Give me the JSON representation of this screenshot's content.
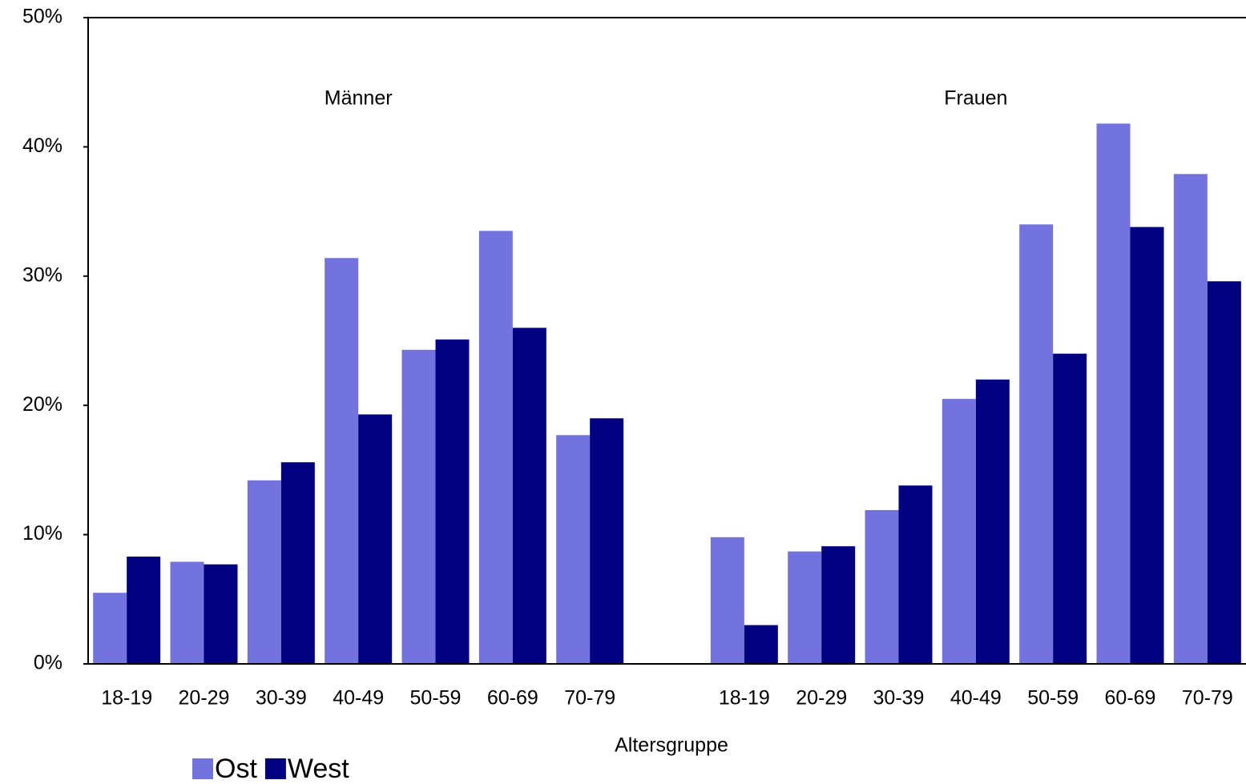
{
  "chart_data": {
    "type": "bar",
    "x_label": "Altersgruppe",
    "annotations": [
      "Männer",
      "Frauen"
    ],
    "categories": [
      "18-19",
      "20-29",
      "30-39",
      "40-49",
      "50-59",
      "60-69",
      "70-79",
      null,
      "18-19",
      "20-29",
      "30-39",
      "40-49",
      "50-59",
      "60-69",
      "70-79"
    ],
    "series": [
      {
        "name": "Ost",
        "color": "#7373e0",
        "values": [
          5.5,
          7.9,
          14.2,
          31.4,
          24.3,
          33.5,
          17.7,
          null,
          9.8,
          8.7,
          11.9,
          20.5,
          34.0,
          41.8,
          37.9
        ]
      },
      {
        "name": "West",
        "color": "#000080",
        "values": [
          8.3,
          7.7,
          15.6,
          19.3,
          25.1,
          26.0,
          19.0,
          null,
          3.0,
          9.1,
          13.8,
          22.0,
          24.0,
          33.8,
          29.6
        ]
      }
    ],
    "ylim": [
      0,
      50
    ],
    "yticks": [
      {
        "value": 0,
        "label": "0%"
      },
      {
        "value": 10,
        "label": "10%"
      },
      {
        "value": 20,
        "label": "20%"
      },
      {
        "value": 30,
        "label": "30%"
      },
      {
        "value": 40,
        "label": "40%"
      },
      {
        "value": 50,
        "label": "50%"
      }
    ],
    "grid": false,
    "legend": "bottom-left"
  }
}
